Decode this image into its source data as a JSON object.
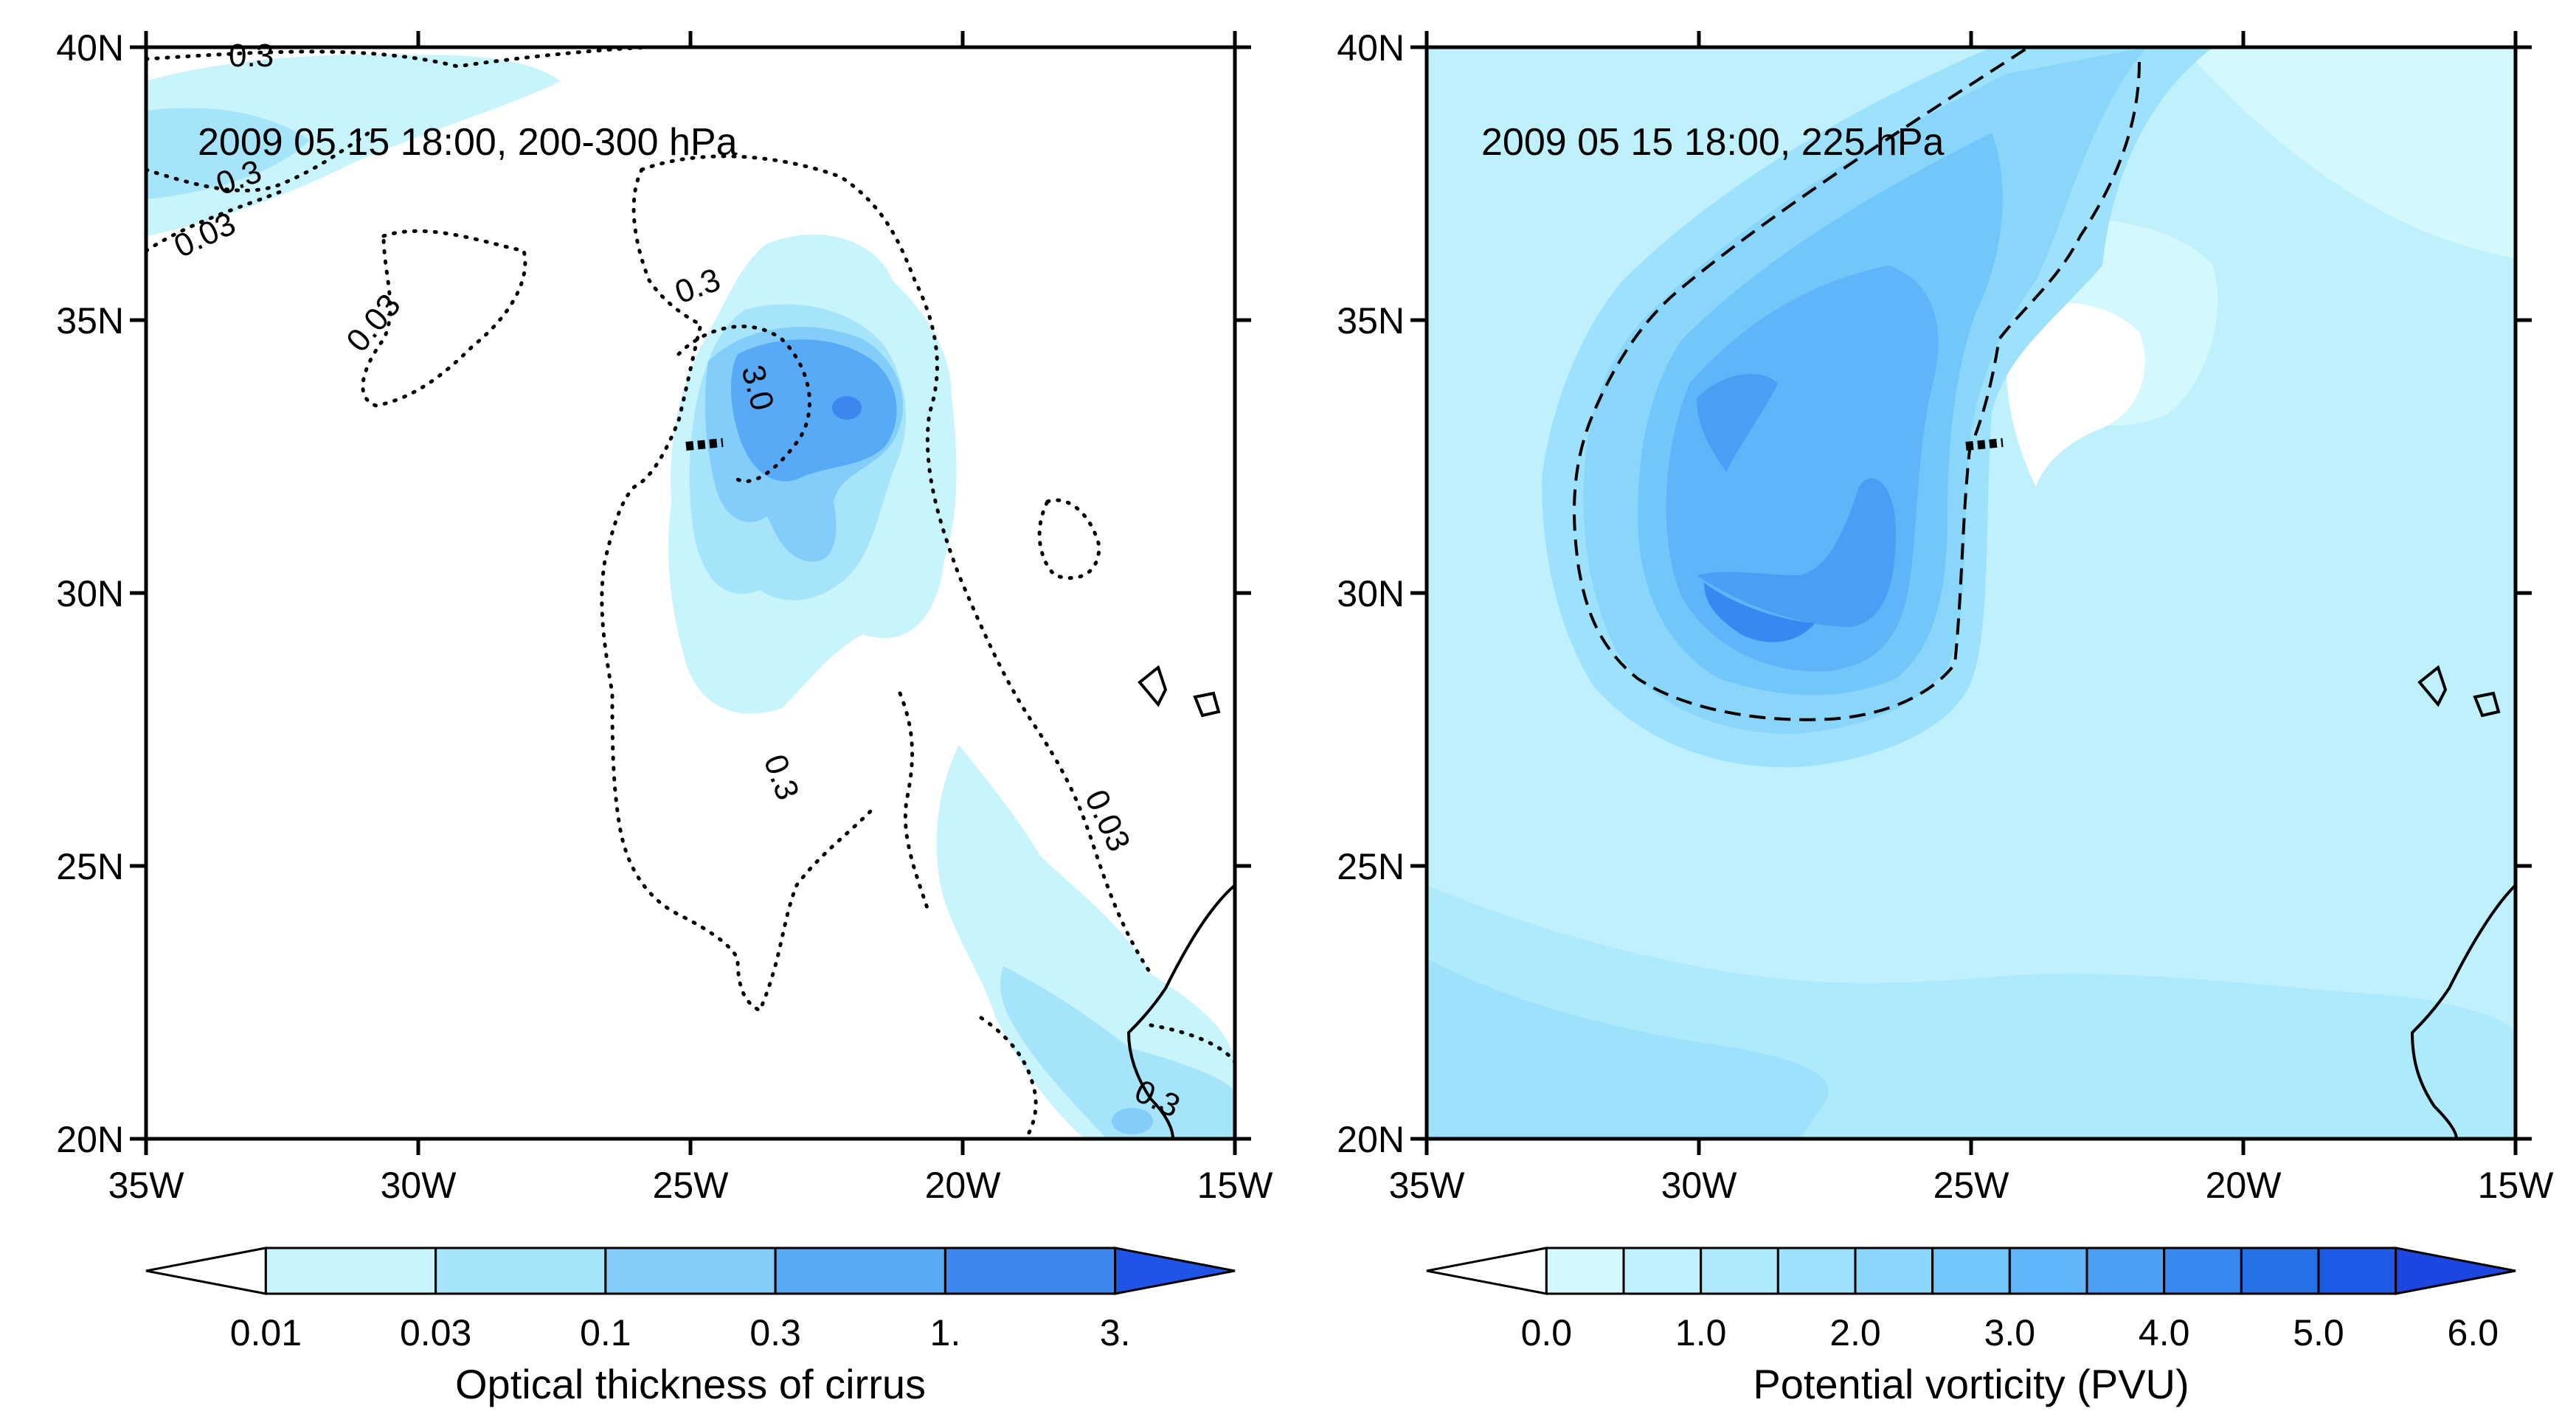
{
  "chart_data": [
    {
      "type": "heatmap",
      "title": "2009 05 15 18:00, 200-300 hPa",
      "colorbar_label": "Optical thickness of cirrus",
      "colorbar_ticks": [
        "0.01",
        "0.03",
        "0.1",
        "0.3",
        "1.",
        "3."
      ],
      "contour_labels": [
        "0.3",
        "0.3",
        "0.03",
        "0.03",
        "0.3",
        "3.0",
        "0.3",
        "0.03",
        "0.3"
      ],
      "colors": [
        "#ffffff",
        "#c8f4fc",
        "#a6e4fb",
        "#82cdfa",
        "#58a9f6",
        "#3d86ee",
        "#1f55e6"
      ],
      "x_ticks": [
        "35W",
        "30W",
        "25W",
        "20W",
        "15W"
      ],
      "y_ticks": [
        "40N",
        "35N",
        "30N",
        "25N",
        "20N"
      ],
      "xlim": [
        -35,
        -15
      ],
      "ylim": [
        20,
        40
      ]
    },
    {
      "type": "heatmap",
      "title": "2009 05 15 18:00, 225 hPa",
      "colorbar_label": "Potential vorticity (PVU)",
      "colorbar_ticks": [
        "0.0",
        "1.0",
        "2.0",
        "3.0",
        "4.0",
        "5.0",
        "6.0"
      ],
      "colors": [
        "#ffffff",
        "#d3f8fd",
        "#bff1fd",
        "#afe9fc",
        "#9de1fc",
        "#8ad6fb",
        "#72c6fa",
        "#5fb5f7",
        "#4a9ef3",
        "#3889ef",
        "#2870ea",
        "#1d5ae6",
        "#1d46e0"
      ],
      "x_ticks": [
        "35W",
        "30W",
        "25W",
        "20W",
        "15W"
      ],
      "y_ticks": [
        "40N",
        "35N",
        "30N",
        "25N",
        "20N"
      ],
      "xlim": [
        -35,
        -15
      ],
      "ylim": [
        20,
        40
      ]
    }
  ]
}
